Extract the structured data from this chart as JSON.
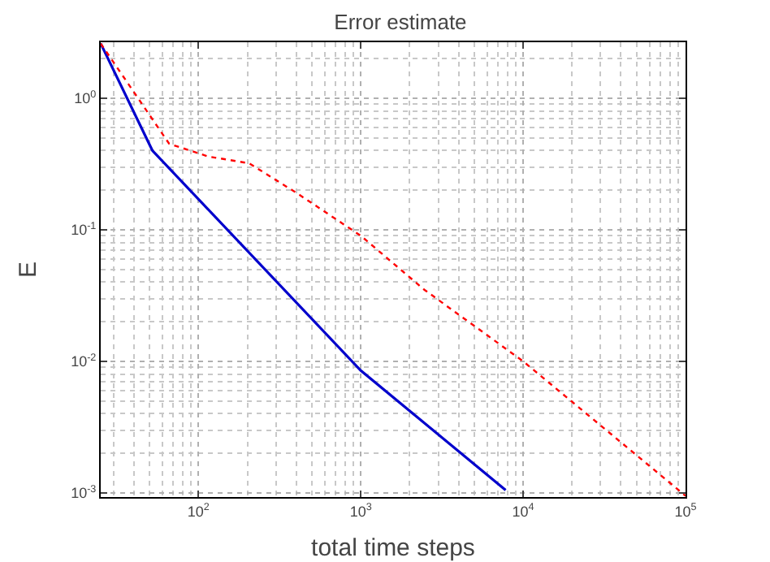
{
  "chart_data": {
    "type": "line",
    "title": "Error estimate",
    "xlabel": "total time steps",
    "ylabel": "E",
    "log": "xy",
    "grid": true,
    "marker": "none",
    "xlim": [
      25,
      100000
    ],
    "ylim": [
      0.00093,
      2.66
    ],
    "xticks": [
      {
        "value": 100,
        "label": "10$^{2}$"
      },
      {
        "value": 1000,
        "label": "10$^{3}$"
      },
      {
        "value": 10000,
        "label": "10$^{4}$"
      },
      {
        "value": 100000,
        "label": "10$^{5}$"
      }
    ],
    "yticks": [
      {
        "value": 0.001,
        "label": "10$^{-3}$"
      },
      {
        "value": 0.01,
        "label": "10$^{-2}$"
      },
      {
        "value": 0.1,
        "label": "10$^{-1}$"
      },
      {
        "value": 1,
        "label": "10$^{0}$"
      }
    ],
    "series": [
      {
        "color": "#0000cc",
        "line_style": "solid",
        "x": [
          25,
          52,
          1000,
          7800
        ],
        "values": [
          2.6,
          0.4,
          0.0085,
          0.00105
        ]
      },
      {
        "color": "#ff0000",
        "line_style": "dotted",
        "x": [
          25,
          66,
          115,
          205,
          403,
          1000,
          2460,
          10000,
          100000
        ],
        "values": [
          2.6,
          0.45,
          0.36,
          0.32,
          0.19,
          0.09,
          0.035,
          0.01,
          0.00095
        ]
      }
    ]
  }
}
